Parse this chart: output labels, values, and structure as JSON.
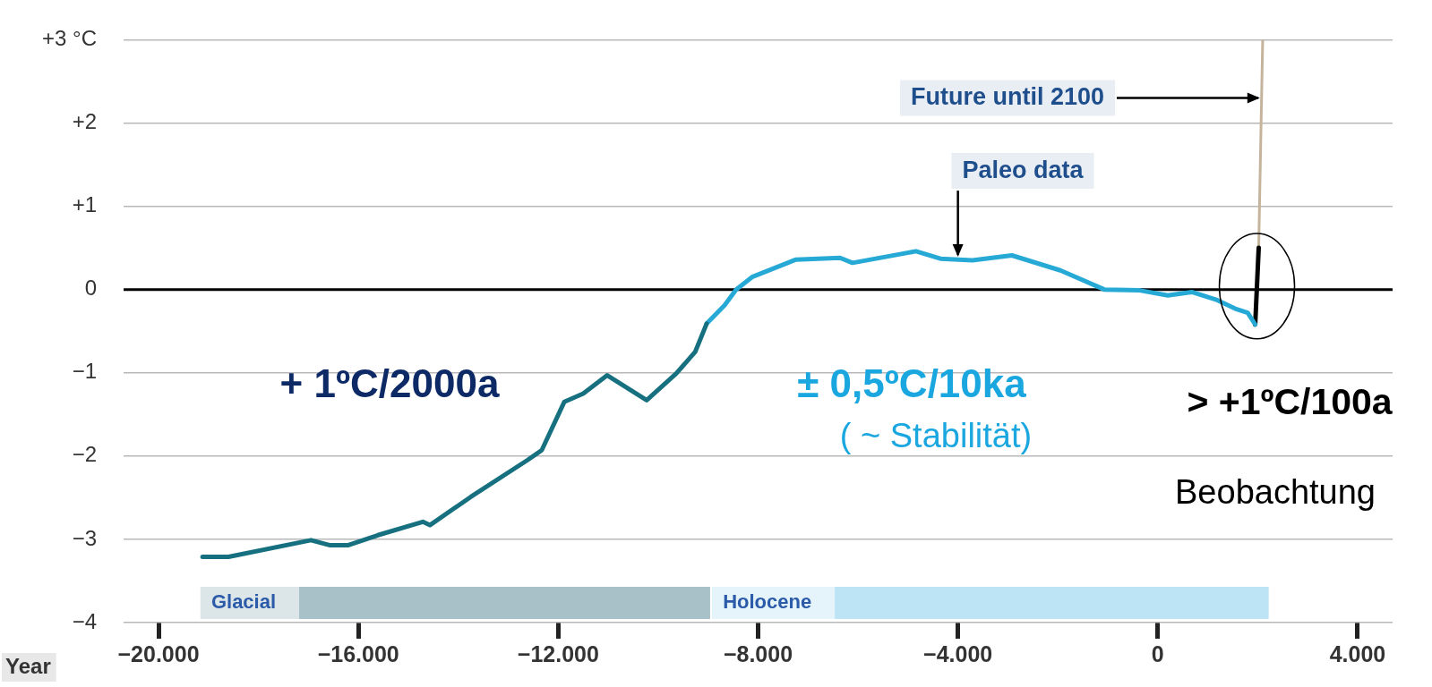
{
  "chart_data": {
    "type": "line",
    "xlabel": "Year",
    "xlim": [
      -20700,
      4700
    ],
    "ylim": [
      -4,
      3
    ],
    "xticks": [
      {
        "value": -20000,
        "label": "−20.000"
      },
      {
        "value": -16000,
        "label": "−16.000"
      },
      {
        "value": -12000,
        "label": "−12.000"
      },
      {
        "value": -8000,
        "label": "−8.000"
      },
      {
        "value": -4000,
        "label": "−4.000"
      },
      0,
      {
        "value": 4000,
        "label": "4.000"
      }
    ],
    "yticks": [
      {
        "value": -4,
        "label": "−4"
      },
      {
        "value": -3,
        "label": "−3"
      },
      {
        "value": -2,
        "label": "−2"
      },
      {
        "value": -1,
        "label": "−1"
      },
      0,
      {
        "value": 1,
        "label": "+1"
      },
      {
        "value": 2,
        "label": "+2"
      },
      {
        "value": 3,
        "label": "+3 °C"
      }
    ],
    "grid": "y",
    "legend": false,
    "marker": "none",
    "line_style": "solid",
    "series": [
      {
        "color": "#17707f",
        "x": [
          -19120,
          -18600,
          -16950,
          -16580,
          -16200,
          -15610,
          -14710,
          -14570,
          -13750,
          -12620,
          -12330,
          -11880,
          -11500,
          -11020,
          -10230,
          -9640,
          -9260,
          -9030
        ],
        "values": [
          -3.21,
          -3.21,
          -3.01,
          -3.07,
          -3.07,
          -2.95,
          -2.79,
          -2.83,
          -2.49,
          -2.05,
          -1.93,
          -1.35,
          -1.25,
          -1.03,
          -1.33,
          -1.01,
          -0.75,
          -0.41
        ]
      },
      {
        "color": "#27a9d6",
        "x": [
          -9030,
          -8670,
          -8440,
          -8120,
          -7240,
          -6360,
          -6110,
          -4840,
          -4350,
          -3710,
          -2920,
          -1950,
          -1070,
          -360,
          200,
          680,
          1160,
          1550,
          1800,
          1950
        ],
        "values": [
          -0.41,
          -0.19,
          0.0,
          0.15,
          0.36,
          0.38,
          0.32,
          0.46,
          0.37,
          0.35,
          0.41,
          0.23,
          0.0,
          -0.01,
          -0.07,
          -0.03,
          -0.12,
          -0.23,
          -0.28,
          -0.42
        ]
      },
      {
        "color": "#000000",
        "x": [
          1950,
          2020
        ],
        "values": [
          -0.42,
          0.5
        ]
      },
      {
        "color": "#c5b49b",
        "x": [
          2020,
          2100
        ],
        "values": [
          0.5,
          3.0
        ]
      }
    ],
    "ref_lines": [
      {
        "axis": "y",
        "value": 0,
        "color": "#000000",
        "line_style": "solid"
      }
    ],
    "bands": [
      {
        "axis": "x",
        "from": -19160,
        "to": -8960,
        "label": "Glacial",
        "color": "#a8c0c8"
      },
      {
        "axis": "x",
        "from": -8920,
        "to": 2220,
        "label": "Holocene",
        "color": "#bde4f4"
      }
    ],
    "annotations": [
      {
        "text": "Future until 2100",
        "x": 2080,
        "y": 2.3
      },
      {
        "text": "Paleo data",
        "x": -4000,
        "y": 0.35
      },
      "+ 1ºC/2000a",
      "± 0,5ºC/10ka",
      "( ~ Stabilität)",
      "> +1ºC/100a",
      "Beobachtung"
    ]
  }
}
